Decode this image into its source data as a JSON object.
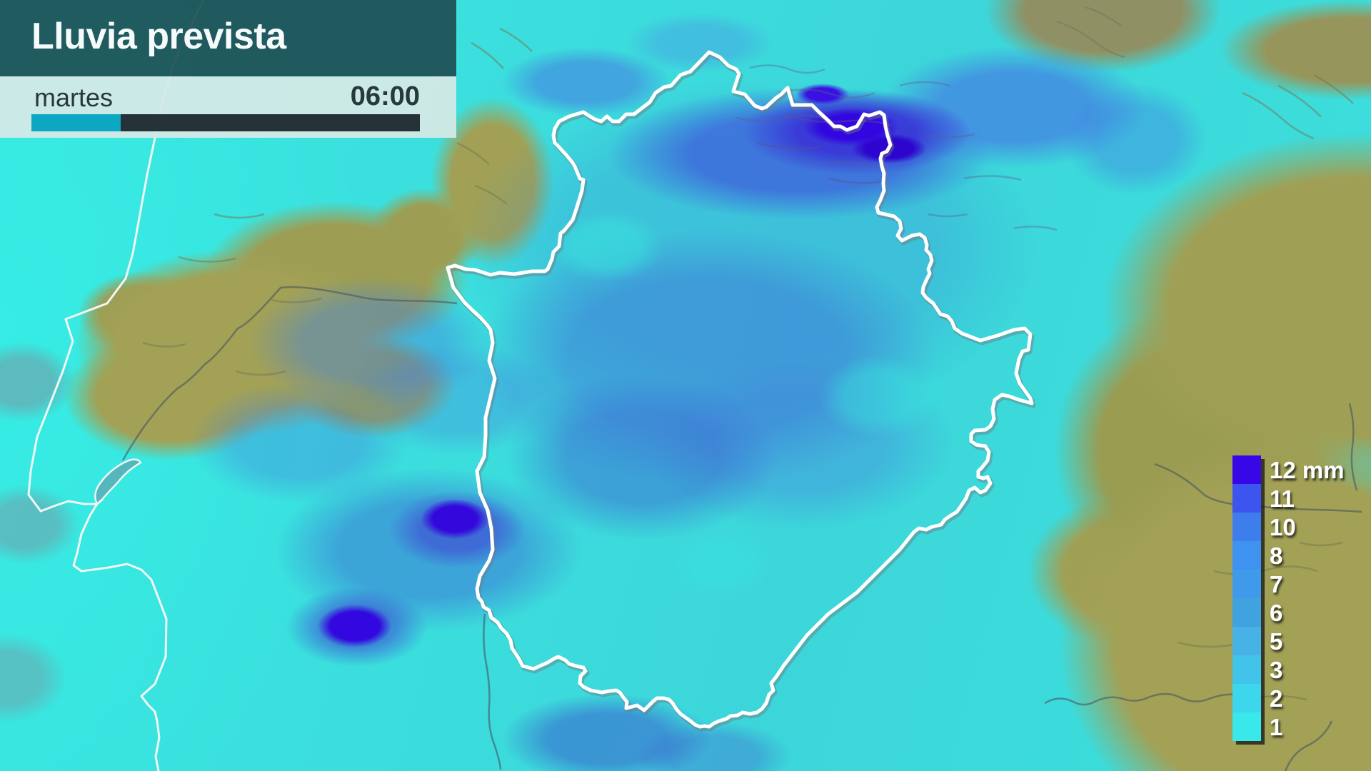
{
  "header": {
    "title": "Lluvia prevista",
    "day": "martes",
    "time": "06:00",
    "progress_percent": 23,
    "colors": {
      "title_band_bg": "rgba(30,80,85,0.93)",
      "sub_band_bg": "rgba(212,233,229,0.94)",
      "text_dark": "#27393a",
      "title_text": "#f5fafa",
      "bar_fill": "#0ca8c1",
      "bar_track": "#263238"
    }
  },
  "legend": {
    "unit": "mm",
    "items": [
      {
        "label": "12 mm",
        "value": 12,
        "color": "#3807e8"
      },
      {
        "label": "11",
        "value": 11,
        "color": "#3c55ee"
      },
      {
        "label": "10",
        "value": 10,
        "color": "#3e7eec"
      },
      {
        "label": "8",
        "value": 8,
        "color": "#3f93f0"
      },
      {
        "label": "7",
        "value": 7,
        "color": "#3f9aea"
      },
      {
        "label": "6",
        "value": 6,
        "color": "#41a2e0"
      },
      {
        "label": "5",
        "value": 5,
        "color": "#47b2e6"
      },
      {
        "label": "3",
        "value": 3,
        "color": "#42c4ea"
      },
      {
        "label": "2",
        "value": 2,
        "color": "#3dd6ec"
      },
      {
        "label": "1",
        "value": 1,
        "color": "#39e8ea"
      }
    ]
  },
  "map": {
    "region_outline": "Extremadura",
    "coastline": "Portugal Atlantic coast",
    "palette": {
      "sea_cyan": "#38e9e0",
      "rain_light_cyan": "#3ae4de",
      "rain_moderate_blue": "#4193d8",
      "rain_heavy_blue": "#3f63d0",
      "rain_extreme_violet": "#3406dd",
      "dry_terrain_olive": "#a2a156",
      "region_border": "#ffffff",
      "coast_line": "#f2f7f5",
      "river_line": "#4a5a60"
    }
  }
}
